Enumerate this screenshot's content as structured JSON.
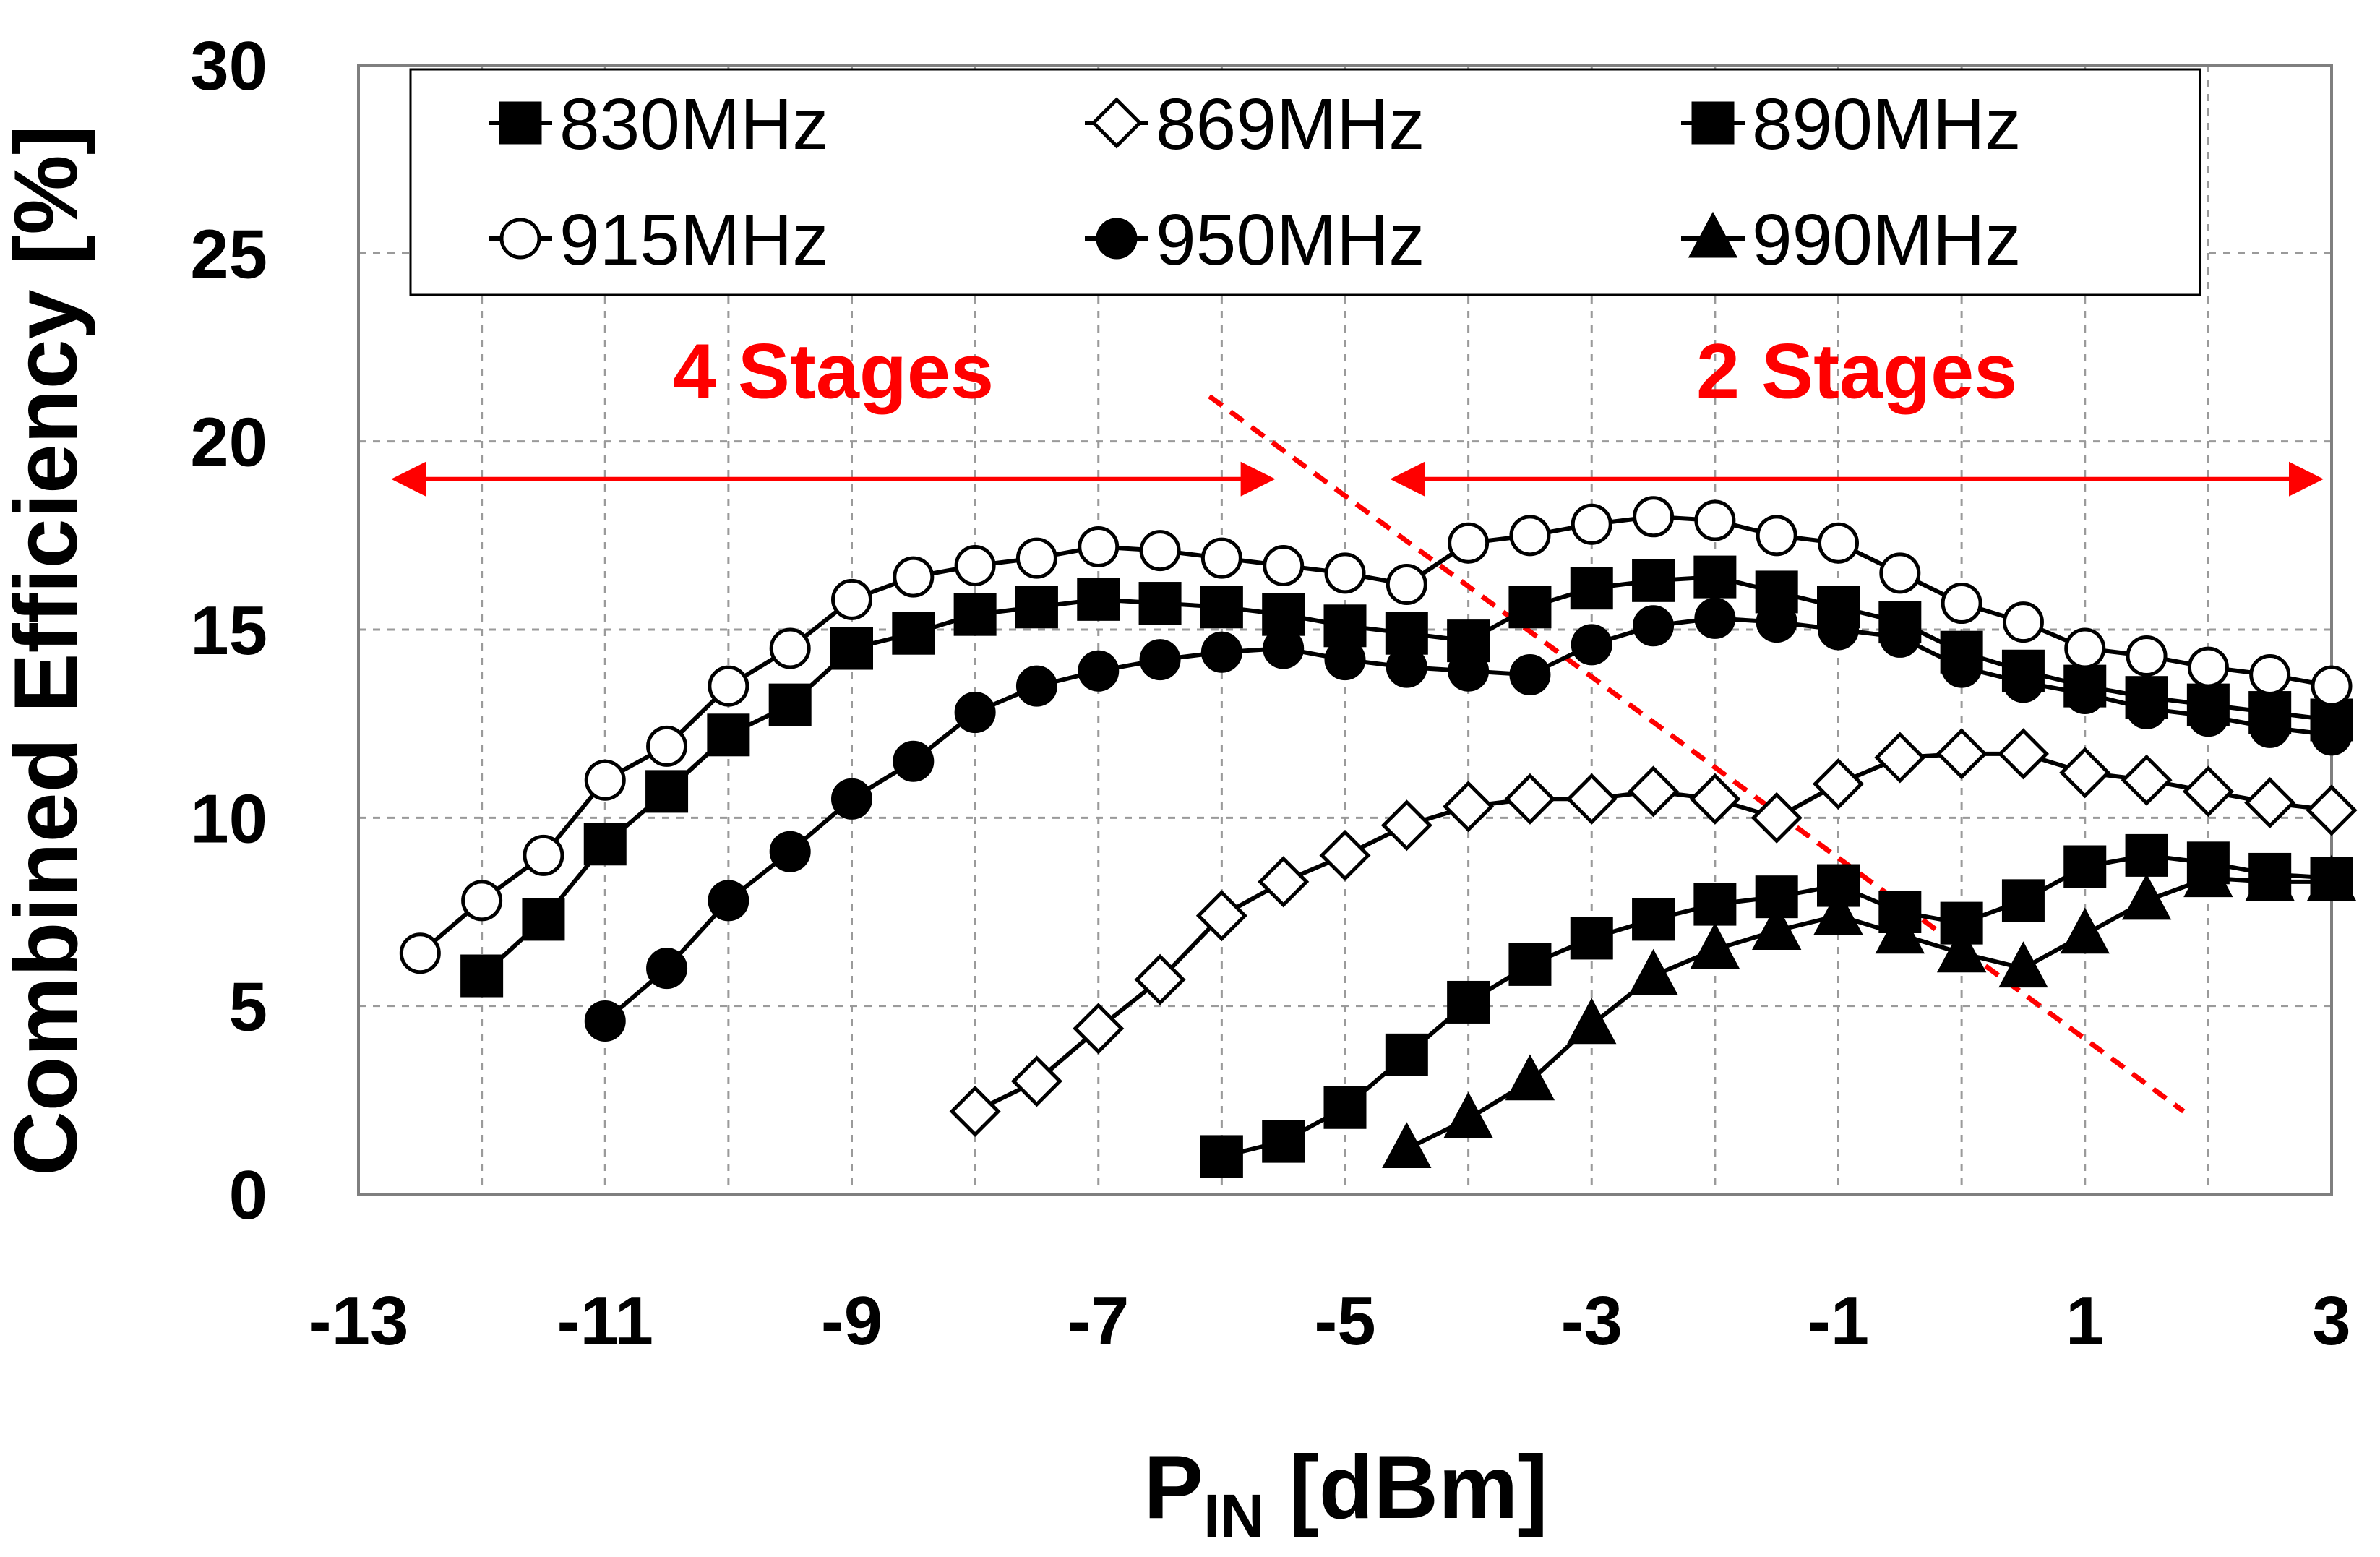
{
  "chart_data": {
    "type": "line",
    "title": "",
    "xlabel_main": "P",
    "xlabel_sub": "IN",
    "xlabel_unit": " [dBm]",
    "ylabel": "Combined Efficiency [%]",
    "xlim": [
      -13,
      3
    ],
    "ylim": [
      0,
      30
    ],
    "x_ticks": [
      -13,
      -11,
      -9,
      -7,
      -5,
      -3,
      -1,
      1,
      3
    ],
    "y_ticks": [
      0,
      5,
      10,
      15,
      20,
      25,
      30
    ],
    "grid": true,
    "legend_position": "top",
    "series": [
      {
        "name": "830MHz",
        "marker": "square",
        "fill": "#000000",
        "x": [
          -12,
          -11.5,
          -11,
          -10.5,
          -10,
          -9.5,
          -9,
          -8.5,
          -8,
          -7.5,
          -7,
          -6.5,
          -6,
          -5.5,
          -5,
          -4.5,
          -4,
          -3.5,
          -3,
          -2.5,
          -2,
          -1.5,
          -1,
          -0.5,
          0,
          0.5,
          1,
          1.5,
          2,
          2.5,
          3
        ],
        "y": [
          5.8,
          7.3,
          9.3,
          10.7,
          12.2,
          13.0,
          14.5,
          14.9,
          15.4,
          15.6,
          15.8,
          15.7,
          15.6,
          15.4,
          15.1,
          14.9,
          14.7,
          15.6,
          16.1,
          16.3,
          16.4,
          16.0,
          15.6,
          15.2,
          14.4,
          13.9,
          13.5,
          13.2,
          13.0,
          12.8,
          12.6
        ]
      },
      {
        "name": "869MHz",
        "marker": "diamond",
        "fill": "#ffffff",
        "x": [
          -8,
          -7.5,
          -7,
          -6.5,
          -6,
          -5.5,
          -5,
          -4.5,
          -4,
          -3.5,
          -3,
          -2.5,
          -2,
          -1.5,
          -1,
          -0.5,
          0,
          0.5,
          1,
          1.5,
          2,
          2.5,
          3
        ],
        "y": [
          2.2,
          3.0,
          4.4,
          5.7,
          7.4,
          8.3,
          9.0,
          9.8,
          10.3,
          10.5,
          10.5,
          10.7,
          10.5,
          10.0,
          10.9,
          11.6,
          11.7,
          11.7,
          11.2,
          11.0,
          10.7,
          10.4,
          10.2
        ]
      },
      {
        "name": "890MHz",
        "marker": "square",
        "fill": "#000000",
        "x": [
          -6,
          -5.5,
          -5,
          -4.5,
          -4,
          -3.5,
          -3,
          -2.5,
          -2,
          -1.5,
          -1,
          -0.5,
          0,
          0.5,
          1,
          1.5,
          2,
          2.5,
          3
        ],
        "y": [
          1.0,
          1.4,
          2.3,
          3.7,
          5.1,
          6.1,
          6.8,
          7.3,
          7.7,
          7.9,
          8.2,
          7.5,
          7.2,
          7.8,
          8.7,
          9.0,
          8.8,
          8.5,
          8.4
        ]
      },
      {
        "name": "915MHz",
        "marker": "circle",
        "fill": "#ffffff",
        "x": [
          -12.5,
          -12,
          -11.5,
          -11,
          -10.5,
          -10,
          -9.5,
          -9,
          -8.5,
          -8,
          -7.5,
          -7,
          -6.5,
          -6,
          -5.5,
          -5,
          -4.5,
          -4,
          -3.5,
          -3,
          -2.5,
          -2,
          -1.5,
          -1,
          -0.5,
          0,
          0.5,
          1,
          1.5,
          2,
          2.5,
          3
        ],
        "y": [
          6.4,
          7.8,
          9.0,
          11.0,
          11.9,
          13.5,
          14.5,
          15.8,
          16.4,
          16.7,
          16.9,
          17.2,
          17.1,
          16.9,
          16.7,
          16.5,
          16.2,
          17.3,
          17.5,
          17.8,
          18.0,
          17.9,
          17.5,
          17.3,
          16.5,
          15.7,
          15.2,
          14.5,
          14.3,
          14.0,
          13.8,
          13.5
        ]
      },
      {
        "name": "950MHz",
        "marker": "circle",
        "fill": "#000000",
        "x": [
          -11,
          -10.5,
          -10,
          -9.5,
          -9,
          -8.5,
          -8,
          -7.5,
          -7,
          -6.5,
          -6,
          -5.5,
          -5,
          -4.5,
          -4,
          -3.5,
          -3,
          -2.5,
          -2,
          -1.5,
          -1,
          -0.5,
          0,
          0.5,
          1,
          1.5,
          2,
          2.5,
          3
        ],
        "y": [
          4.6,
          6.0,
          7.8,
          9.1,
          10.5,
          11.5,
          12.8,
          13.5,
          13.9,
          14.2,
          14.4,
          14.5,
          14.2,
          14.0,
          13.9,
          13.8,
          14.6,
          15.1,
          15.3,
          15.2,
          15.0,
          14.8,
          14.0,
          13.6,
          13.3,
          12.9,
          12.7,
          12.4,
          12.2
        ]
      },
      {
        "name": "990MHz",
        "marker": "triangle",
        "fill": "#000000",
        "x": [
          -4.5,
          -4,
          -3.5,
          -3,
          -2.5,
          -2,
          -1.5,
          -1,
          -0.5,
          0,
          0.5,
          1,
          1.5,
          2,
          2.5,
          3
        ],
        "y": [
          1.2,
          2.0,
          3.0,
          4.5,
          5.8,
          6.5,
          7.0,
          7.4,
          6.9,
          6.4,
          6.0,
          6.9,
          7.8,
          8.4,
          8.3,
          8.3
        ]
      }
    ],
    "annotations": [
      {
        "text": "4 Stages",
        "color": "#ff0000",
        "arrow_from_x": -12.7,
        "arrow_to_x": -5.6,
        "arrow_y": 19.0
      },
      {
        "text": "2 Stages",
        "color": "#ff0000",
        "arrow_from_x": -4.6,
        "arrow_to_x": 2.9,
        "arrow_y": 19.0
      }
    ],
    "divider_line": {
      "color": "#ff0000",
      "style": "dashed",
      "x": [
        -6.1,
        1.8
      ],
      "y": [
        21.2,
        2.2
      ]
    }
  }
}
